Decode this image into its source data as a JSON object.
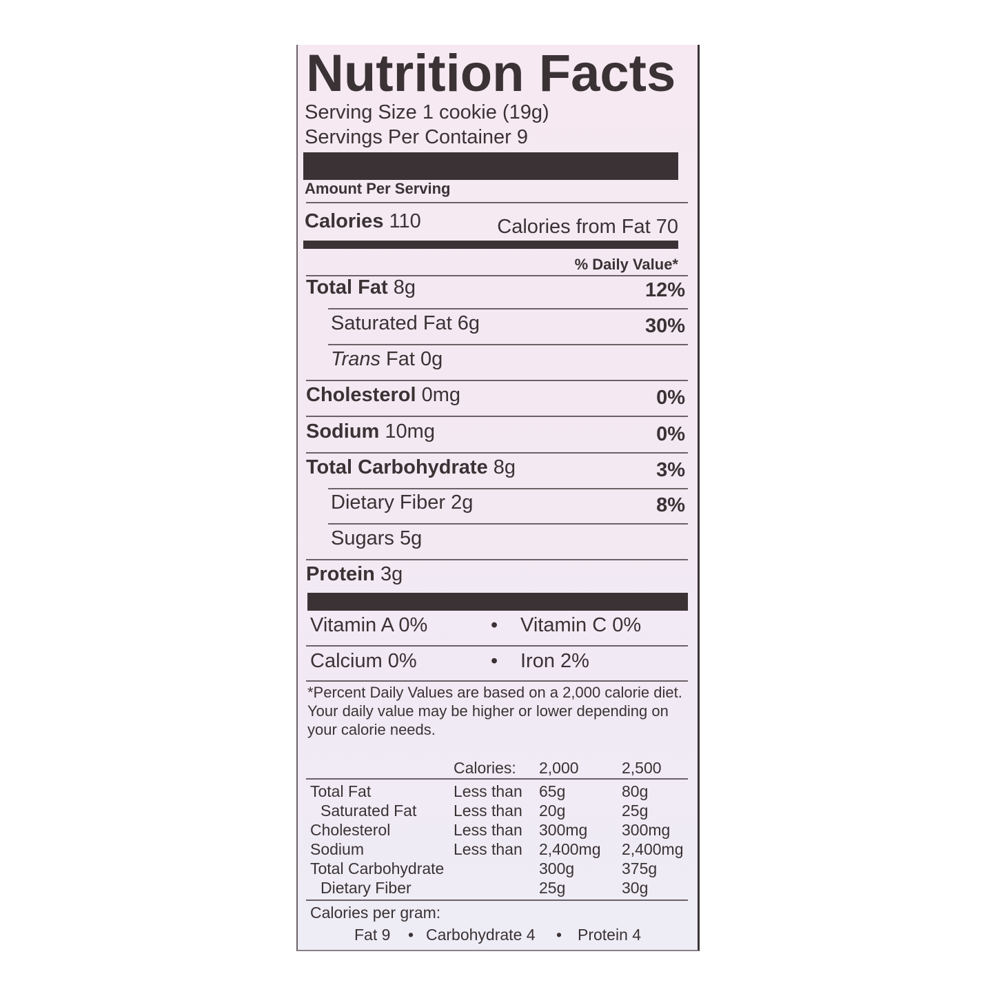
{
  "title": "Nutrition Facts",
  "serving_size": "Serving Size 1 cookie (19g)",
  "servings_per_container": "Servings Per Container 9",
  "amount_per_serving": "Amount Per Serving",
  "calories": {
    "label": "Calories",
    "value": "110",
    "from_fat": "Calories from Fat 70"
  },
  "daily_value_header": "% Daily Value*",
  "nutrients": [
    {
      "label": "Total Fat",
      "amount": "8g",
      "dv": "12%"
    },
    {
      "label": "Saturated Fat",
      "amount": "6g",
      "dv": "30%"
    },
    {
      "label": "Trans",
      "amount": "Fat 0g",
      "dv": ""
    },
    {
      "label": "Cholesterol",
      "amount": "0mg",
      "dv": "0%"
    },
    {
      "label": "Sodium",
      "amount": "10mg",
      "dv": "0%"
    },
    {
      "label": "Total Carbohydrate",
      "amount": "8g",
      "dv": "3%"
    },
    {
      "label": "Dietary Fiber",
      "amount": "2g",
      "dv": "8%"
    },
    {
      "label": "Sugars",
      "amount": "5g",
      "dv": ""
    },
    {
      "label": "Protein",
      "amount": "3g",
      "dv": ""
    }
  ],
  "vitamins": [
    {
      "left": "Vitamin A 0%",
      "right": "Vitamin C 0%"
    },
    {
      "left": "Calcium 0%",
      "right": "Iron 2%"
    }
  ],
  "bullet": "•",
  "footnote": "*Percent Daily Values are based on a 2,000 calorie diet. Your daily value may be higher or lower depending on your calorie needs.",
  "dv_table": {
    "header": [
      "",
      "Calories:",
      "2,000",
      "2,500"
    ],
    "rows": [
      [
        "Total Fat",
        "Less than",
        "65g",
        "80g"
      ],
      [
        "Saturated Fat",
        "Less than",
        "20g",
        "25g"
      ],
      [
        "Cholesterol",
        "Less than",
        "300mg",
        "300mg"
      ],
      [
        "Sodium",
        "Less than",
        "2,400mg",
        "2,400mg"
      ],
      [
        "Total Carbohydrate",
        "",
        "300g",
        "375g"
      ],
      [
        "Dietary Fiber",
        "",
        "25g",
        "30g"
      ]
    ]
  },
  "calories_per_gram": {
    "label": "Calories per gram:",
    "fat": "Fat 9",
    "carb": "Carbohydrate 4",
    "protein": "Protein 4"
  }
}
